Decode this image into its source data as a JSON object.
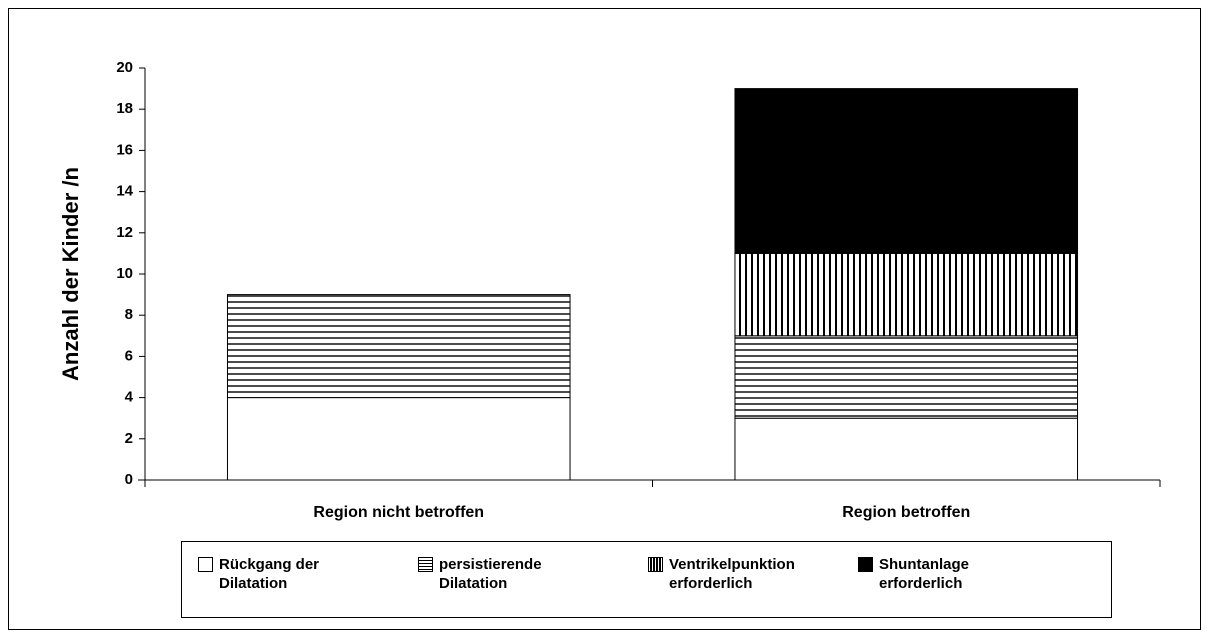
{
  "chart_data": {
    "type": "stacked_bar",
    "y_label": "Anzahl der Kinder /n",
    "categories": [
      "Region nicht betroffen",
      "Region betroffen"
    ],
    "series": [
      {
        "name": "Rückgang der Dilatation",
        "color": "#ffffff",
        "hatch": "none",
        "values": [
          4,
          3
        ]
      },
      {
        "name": "persistierende Dilatation",
        "color": "#ffffff",
        "hatch": "horizontal",
        "values": [
          5,
          4
        ]
      },
      {
        "name": "Ventrikelpunktion erforderlich",
        "color": "#ffffff",
        "hatch": "vertical",
        "values": [
          0,
          4
        ]
      },
      {
        "name": "Shuntanlage erforderlich",
        "color": "#000000",
        "hatch": "none",
        "values": [
          0,
          8
        ]
      }
    ],
    "ylim": [
      0,
      20
    ],
    "yticks": [
      0,
      2,
      4,
      6,
      8,
      10,
      12,
      14,
      16,
      18,
      20
    ],
    "grid": false
  }
}
